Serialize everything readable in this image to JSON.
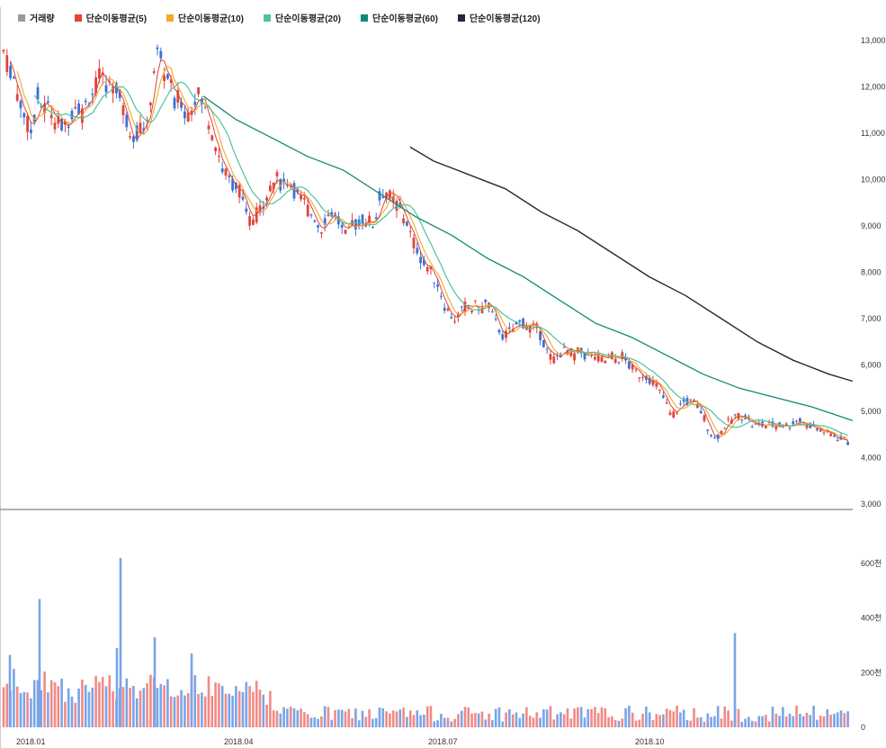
{
  "legend": [
    {
      "label": "거래량",
      "color": "#9a9a9a"
    },
    {
      "label": "단순이동평균(5)",
      "color": "#e0443a"
    },
    {
      "label": "단순이동평균(10)",
      "color": "#f0a830"
    },
    {
      "label": "단순이동평균(20)",
      "color": "#4fc1a0"
    },
    {
      "label": "단순이동평균(60)",
      "color": "#0e8a78"
    },
    {
      "label": "단순이동평균(120)",
      "color": "#1e2a3a"
    }
  ],
  "chart_data": {
    "type": "candlestick",
    "price_axis": {
      "min": 3000,
      "max": 13000,
      "ticks": [
        "13,000",
        "12,000",
        "11,000",
        "10,000",
        "9,000",
        "8,000",
        "7,000",
        "6,000",
        "5,000",
        "4,000",
        "3,000"
      ]
    },
    "volume_axis": {
      "min": 0,
      "max": 600,
      "unit": "천",
      "ticks": [
        "600천",
        "400천",
        "200천",
        "0"
      ]
    },
    "x_ticks": [
      "2018.01",
      "2018.04",
      "2018.07",
      "2018.10"
    ],
    "up_color": "#e0443a",
    "down_color": "#3a72d8",
    "vol_up_color": "#f08a86",
    "vol_down_color": "#7aa4e8",
    "price_path": [
      [
        0,
        12900
      ],
      [
        6,
        12500
      ],
      [
        12,
        12300
      ],
      [
        18,
        11800
      ],
      [
        25,
        11400
      ],
      [
        32,
        11000
      ],
      [
        40,
        11800
      ],
      [
        46,
        11500
      ],
      [
        52,
        11600
      ],
      [
        58,
        11300
      ],
      [
        64,
        11200
      ],
      [
        70,
        11100
      ],
      [
        76,
        11400
      ],
      [
        83,
        11700
      ],
      [
        90,
        11400
      ],
      [
        96,
        11800
      ],
      [
        102,
        11900
      ],
      [
        108,
        12200
      ],
      [
        114,
        12100
      ],
      [
        120,
        12000
      ],
      [
        126,
        12100
      ],
      [
        132,
        11700
      ],
      [
        138,
        11300
      ],
      [
        144,
        11000
      ],
      [
        150,
        11000
      ],
      [
        156,
        11200
      ],
      [
        162,
        11100
      ],
      [
        168,
        12300
      ],
      [
        174,
        12800
      ],
      [
        180,
        12300
      ],
      [
        186,
        12200
      ],
      [
        192,
        11600
      ],
      [
        198,
        11800
      ],
      [
        204,
        11400
      ],
      [
        210,
        11500
      ],
      [
        216,
        11900
      ],
      [
        222,
        11700
      ],
      [
        228,
        11400
      ],
      [
        234,
        11000
      ],
      [
        240,
        10600
      ],
      [
        246,
        10200
      ],
      [
        252,
        10000
      ],
      [
        258,
        9900
      ],
      [
        264,
        9800
      ],
      [
        270,
        9300
      ],
      [
        276,
        9100
      ],
      [
        282,
        9200
      ],
      [
        288,
        9400
      ],
      [
        294,
        9700
      ],
      [
        300,
        9900
      ],
      [
        306,
        10000
      ],
      [
        312,
        9900
      ],
      [
        318,
        10000
      ],
      [
        324,
        9800
      ],
      [
        330,
        9600
      ],
      [
        336,
        9500
      ],
      [
        342,
        9300
      ],
      [
        348,
        9200
      ],
      [
        354,
        8900
      ],
      [
        360,
        9200
      ],
      [
        366,
        9300
      ],
      [
        372,
        9200
      ],
      [
        378,
        8900
      ],
      [
        384,
        8700
      ],
      [
        390,
        9100
      ],
      [
        396,
        9000
      ],
      [
        402,
        9200
      ],
      [
        408,
        9100
      ],
      [
        414,
        9000
      ],
      [
        420,
        9600
      ],
      [
        426,
        9800
      ],
      [
        432,
        9600
      ],
      [
        438,
        9500
      ],
      [
        444,
        9300
      ],
      [
        450,
        9100
      ],
      [
        456,
        8700
      ],
      [
        462,
        8500
      ],
      [
        468,
        8200
      ],
      [
        474,
        8100
      ],
      [
        480,
        7900
      ],
      [
        486,
        7700
      ],
      [
        492,
        7300
      ],
      [
        498,
        7100
      ],
      [
        504,
        7000
      ],
      [
        510,
        7100
      ],
      [
        516,
        7300
      ],
      [
        522,
        7200
      ],
      [
        528,
        7300
      ],
      [
        534,
        7200
      ],
      [
        540,
        7400
      ],
      [
        546,
        7000
      ],
      [
        552,
        6800
      ],
      [
        558,
        6600
      ],
      [
        564,
        6700
      ],
      [
        570,
        6800
      ],
      [
        576,
        6900
      ],
      [
        582,
        6900
      ],
      [
        588,
        6800
      ],
      [
        594,
        6800
      ],
      [
        600,
        6600
      ],
      [
        606,
        6300
      ],
      [
        612,
        6100
      ],
      [
        618,
        6200
      ],
      [
        624,
        6300
      ],
      [
        630,
        6300
      ],
      [
        636,
        6200
      ],
      [
        642,
        6300
      ],
      [
        648,
        6200
      ],
      [
        654,
        6200
      ],
      [
        660,
        6200
      ],
      [
        666,
        6100
      ],
      [
        672,
        6100
      ],
      [
        678,
        6200
      ],
      [
        684,
        6100
      ],
      [
        690,
        6200
      ],
      [
        696,
        6000
      ],
      [
        702,
        5900
      ],
      [
        708,
        5800
      ],
      [
        714,
        5800
      ],
      [
        720,
        5700
      ],
      [
        726,
        5600
      ],
      [
        732,
        5400
      ],
      [
        738,
        5200
      ],
      [
        744,
        4900
      ],
      [
        750,
        5000
      ],
      [
        756,
        5200
      ],
      [
        762,
        5200
      ],
      [
        768,
        5200
      ],
      [
        774,
        5100
      ],
      [
        780,
        4900
      ],
      [
        786,
        4600
      ],
      [
        792,
        4400
      ],
      [
        798,
        4500
      ],
      [
        804,
        4700
      ],
      [
        810,
        4800
      ],
      [
        816,
        4900
      ],
      [
        822,
        4900
      ],
      [
        828,
        4900
      ],
      [
        834,
        4700
      ],
      [
        840,
        4700
      ],
      [
        846,
        4700
      ],
      [
        852,
        4700
      ],
      [
        858,
        4700
      ],
      [
        864,
        4700
      ],
      [
        870,
        4700
      ],
      [
        876,
        4700
      ],
      [
        882,
        4800
      ],
      [
        888,
        4800
      ],
      [
        894,
        4700
      ],
      [
        900,
        4700
      ],
      [
        906,
        4600
      ],
      [
        912,
        4600
      ],
      [
        918,
        4500
      ],
      [
        924,
        4500
      ],
      [
        930,
        4400
      ],
      [
        936,
        4400
      ],
      [
        942,
        4300
      ],
      [
        946,
        4250
      ]
    ],
    "ma60_path": [
      [
        224,
        11800
      ],
      [
        260,
        11300
      ],
      [
        300,
        10900
      ],
      [
        340,
        10500
      ],
      [
        380,
        10200
      ],
      [
        420,
        9700
      ],
      [
        460,
        9200
      ],
      [
        500,
        8800
      ],
      [
        540,
        8300
      ],
      [
        580,
        7900
      ],
      [
        620,
        7400
      ],
      [
        660,
        6900
      ],
      [
        700,
        6600
      ],
      [
        740,
        6200
      ],
      [
        780,
        5800
      ],
      [
        820,
        5500
      ],
      [
        860,
        5300
      ],
      [
        900,
        5100
      ],
      [
        946,
        4800
      ]
    ],
    "ma120_path": [
      [
        454,
        10700
      ],
      [
        480,
        10400
      ],
      [
        520,
        10100
      ],
      [
        560,
        9800
      ],
      [
        600,
        9300
      ],
      [
        640,
        8900
      ],
      [
        680,
        8400
      ],
      [
        720,
        7900
      ],
      [
        760,
        7500
      ],
      [
        800,
        7000
      ],
      [
        840,
        6500
      ],
      [
        880,
        6100
      ],
      [
        920,
        5800
      ],
      [
        946,
        5650
      ]
    ],
    "volume_spikes": [
      {
        "x": 42,
        "v": 470
      },
      {
        "x": 132,
        "v": 620
      },
      {
        "x": 128,
        "v": 290
      },
      {
        "x": 170,
        "v": 330
      },
      {
        "x": 211,
        "v": 270
      },
      {
        "x": 9,
        "v": 265
      },
      {
        "x": 815,
        "v": 345
      }
    ]
  }
}
